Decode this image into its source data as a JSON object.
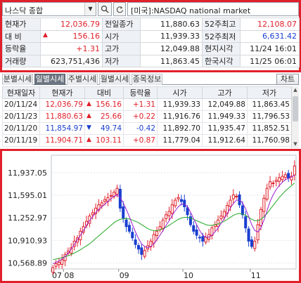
{
  "search": {
    "category": "나스닥 종합",
    "market": "[미국]:NASDAQ national market"
  },
  "summary": {
    "rows": [
      [
        {
          "l": "현재가"
        },
        {
          "v": "12,036.79",
          "c": "up"
        },
        {
          "l": "전일종가"
        },
        {
          "v": "11,880.63"
        },
        {
          "l": "52주최고"
        },
        {
          "v": "12,108.07",
          "c": "up"
        }
      ],
      [
        {
          "l": "대 비"
        },
        {
          "v": "156.16",
          "c": "up",
          "tri": "▲"
        },
        {
          "l": "시가"
        },
        {
          "v": "11,939.33"
        },
        {
          "l": "52주최저"
        },
        {
          "v": "6,631.42",
          "c": "down"
        }
      ],
      [
        {
          "l": "등락율"
        },
        {
          "v": "+1.31",
          "c": "up"
        },
        {
          "l": "고가"
        },
        {
          "v": "12,049.88"
        },
        {
          "l": "현지시각"
        },
        {
          "v": "11/24 16:01"
        }
      ],
      [
        {
          "l": "거래량"
        },
        {
          "v": "623,751,436"
        },
        {
          "l": "저가"
        },
        {
          "v": "11,863.45"
        },
        {
          "l": "한국시각"
        },
        {
          "v": "11/25 06:01"
        }
      ]
    ]
  },
  "tabs": [
    "분별시세",
    "일별시세",
    "주별시세",
    "월별시세",
    "종목정보"
  ],
  "active_tab": 1,
  "chart_button": "차트",
  "daily": {
    "headers": [
      "현재일자",
      "현재가",
      "대비",
      "등락율",
      "시가",
      "고가",
      "저가"
    ],
    "rows": [
      {
        "date": "20/11/24",
        "price": "12,036.79",
        "dir": "up",
        "tri": "▲",
        "diff": "156.16",
        "rate": "+1.31",
        "open": "11,939.33",
        "high": "12,049.88",
        "low": "11,863.45"
      },
      {
        "date": "20/11/23",
        "price": "11,880.63",
        "dir": "up",
        "tri": "▲",
        "diff": "25.66",
        "rate": "+0.22",
        "open": "11,916.76",
        "high": "11,949.33",
        "low": "11,796.53"
      },
      {
        "date": "20/11/20",
        "price": "11,854.97",
        "dir": "down",
        "tri": "▼",
        "diff": "49.74",
        "rate": "-0.42",
        "open": "11,892.70",
        "high": "11,935.47",
        "low": "11,852.51"
      },
      {
        "date": "20/11/19",
        "price": "11,904.71",
        "dir": "up",
        "tri": "▲",
        "diff": "103.11",
        "rate": "+0.87",
        "open": "11,779.04",
        "high": "11,912.64",
        "low": "11,760.98"
      }
    ]
  },
  "colors": {
    "up": "#e0202a",
    "down": "#1a3fd0",
    "ma_short": "#9b1fd0",
    "ma_long": "#22aa22"
  },
  "chart_data": {
    "type": "candlestick",
    "y_ticks": [
      "11,937.05",
      "11,595.01",
      "11,252.97",
      "10,910.93",
      "10,568.89"
    ],
    "y_tick_values": [
      11937.05,
      11595.01,
      11252.97,
      10910.93,
      10568.89
    ],
    "ylim": [
      10480,
      12200
    ],
    "x_ticks": [
      {
        "label": "07",
        "i": 0
      },
      {
        "label": "08",
        "i": 4
      },
      {
        "label": "09",
        "i": 22
      },
      {
        "label": "10",
        "i": 43
      },
      {
        "label": "11",
        "i": 65
      }
    ],
    "close": [
      10500,
      10560,
      10580,
      10620,
      10700,
      10750,
      10800,
      10900,
      10950,
      11050,
      11120,
      11200,
      11280,
      11330,
      11400,
      11450,
      11480,
      11530,
      11560,
      11590,
      11640,
      11700,
      11400,
      11250,
      11120,
      11050,
      10950,
      10850,
      10780,
      10700,
      10760,
      10830,
      10900,
      11000,
      11050,
      11120,
      11220,
      11300,
      11350,
      11450,
      11520,
      11560,
      11500,
      11420,
      11300,
      11150,
      11050,
      10990,
      10950,
      10900,
      10960,
      11000,
      11100,
      11150,
      11220,
      11280,
      11350,
      11440,
      11520,
      11600,
      11580,
      11450,
      11300,
      11100,
      10900,
      10820,
      10900,
      11150,
      11380,
      11550,
      11700,
      11800,
      11780,
      11820,
      11860,
      11880,
      11905,
      11855,
      11881,
      12037
    ],
    "ma_short": [
      10560,
      10580,
      10600,
      10630,
      10670,
      10720,
      10780,
      10850,
      10920,
      10990,
      11060,
      11140,
      11210,
      11270,
      11330,
      11380,
      11420,
      11460,
      11500,
      11540,
      11580,
      11600,
      11560,
      11480,
      11380,
      11270,
      11150,
      11040,
      10940,
      10860,
      10820,
      10800,
      10820,
      10860,
      10920,
      10990,
      11060,
      11140,
      11210,
      11290,
      11360,
      11420,
      11460,
      11460,
      11420,
      11340,
      11240,
      11150,
      11060,
      10990,
      10960,
      10960,
      10990,
      11040,
      11100,
      11170,
      11240,
      11320,
      11400,
      11470,
      11520,
      11520,
      11480,
      11390,
      11270,
      11150,
      11060,
      11040,
      11100,
      11220,
      11360,
      11500,
      11600,
      11680,
      11740,
      11790,
      11830,
      11850,
      11870,
      11900
    ],
    "ma_long": [
      10620,
      10630,
      10640,
      10650,
      10665,
      10680,
      10700,
      10720,
      10745,
      10770,
      10800,
      10830,
      10860,
      10900,
      10940,
      10980,
      11020,
      11060,
      11100,
      11140,
      11180,
      11210,
      11230,
      11240,
      11240,
      11235,
      11220,
      11200,
      11180,
      11150,
      11120,
      11090,
      11070,
      11060,
      11060,
      11070,
      11090,
      11110,
      11140,
      11170,
      11200,
      11230,
      11250,
      11260,
      11260,
      11250,
      11230,
      11210,
      11190,
      11170,
      11150,
      11140,
      11140,
      11150,
      11160,
      11180,
      11200,
      11230,
      11260,
      11290,
      11310,
      11320,
      11310,
      11290,
      11260,
      11230,
      11210,
      11210,
      11230,
      11270,
      11320,
      11380,
      11440,
      11500,
      11560,
      11610,
      11660,
      11700,
      11740,
      11780
    ]
  }
}
